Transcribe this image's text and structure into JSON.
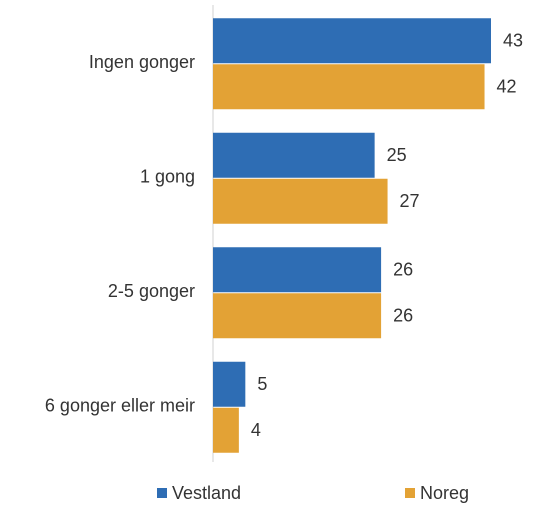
{
  "chart_data": {
    "type": "bar",
    "orientation": "horizontal",
    "categories": [
      "Ingen gonger",
      "1 gong",
      "2-5 gonger",
      "6 gonger eller meir"
    ],
    "series": [
      {
        "name": "Vestland",
        "color": "#2e6db4",
        "values": [
          43,
          25,
          26,
          5
        ]
      },
      {
        "name": "Noreg",
        "color": "#e3a235",
        "values": [
          42,
          27,
          26,
          4
        ]
      }
    ],
    "legend": "bottom"
  }
}
